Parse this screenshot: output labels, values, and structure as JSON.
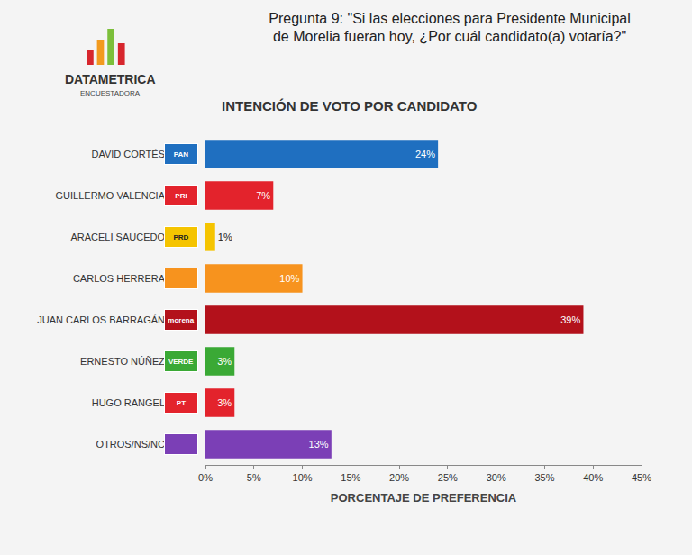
{
  "chart_data": {
    "type": "bar",
    "orientation": "horizontal",
    "title": "Pregunta 9: \"Si las elecciones para Presidente Municipal de Morelia fueran hoy, ¿Por cuál candidato(a) votaría?\"",
    "subtitle": "INTENCIÓN DE VOTO POR CANDIDATO",
    "xlabel": "PORCENTAJE DE PREFERENCIA",
    "annotations": [
      "DATAMETRICA",
      "ENCUESTADORA"
    ],
    "categories": [
      "DAVID CORTÉS",
      "GUILLERMO VALENCIA",
      "ARACELI SAUCEDO",
      "CARLOS HERRERA",
      "JUAN CARLOS BARRAGÁN",
      "ERNESTO NÚÑEZ",
      "HUGO RANGEL",
      "OTROS/NS/NC"
    ],
    "parties": [
      "PAN",
      "PRI",
      "PRD",
      null,
      "morena",
      "VERDE",
      "PT",
      null
    ],
    "values": [
      24,
      7,
      1,
      10,
      39,
      3,
      3,
      13
    ],
    "value_labels": [
      "24%",
      "7%",
      "1%",
      "10%",
      "39%",
      "3%",
      "3%",
      "13%"
    ],
    "colors": [
      "#1f6fc0",
      "#e3232c",
      "#f5c400",
      "#f7931e",
      "#b3111b",
      "#3aa935",
      "#e3232c",
      "#7b3fb6"
    ],
    "xlim": [
      0,
      45
    ],
    "xticks": [
      {
        "value": 0,
        "label": "0%"
      },
      {
        "value": 5,
        "label": "5%"
      },
      {
        "value": 10,
        "label": "10%"
      },
      {
        "value": 15,
        "label": "15%"
      },
      {
        "value": 20,
        "label": "20%"
      },
      {
        "value": 25,
        "label": "25%"
      },
      {
        "value": 30,
        "label": "30%"
      },
      {
        "value": 35,
        "label": "35%"
      },
      {
        "value": 40,
        "label": "40%"
      },
      {
        "value": 45,
        "label": "45%"
      }
    ],
    "grid": false,
    "data_labels": true
  }
}
